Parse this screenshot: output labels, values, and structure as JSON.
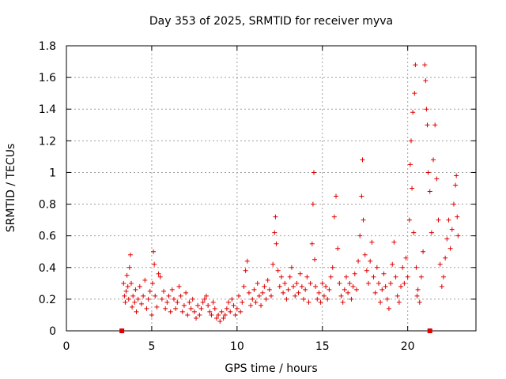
{
  "chart_data": {
    "type": "scatter",
    "title": "Day 353 of 2025, SRMTID for receiver myva",
    "xlabel": "GPS time / hours",
    "ylabel": "SRMTID / TECUs",
    "xlim": [
      0,
      24
    ],
    "ylim": [
      0,
      1.8
    ],
    "xticks": [
      "0",
      "5",
      "10",
      "15",
      "20"
    ],
    "yticks": [
      "0",
      "0.2",
      "0.4",
      "0.6",
      "0.8",
      "1",
      "1.2",
      "1.4",
      "1.6",
      "1.8"
    ],
    "grid": true,
    "marker_color": "#e00000",
    "series": [
      {
        "name": "SRMTID",
        "marker": "plus",
        "points": [
          [
            3.35,
            0.3
          ],
          [
            3.4,
            0.22
          ],
          [
            3.45,
            0.18
          ],
          [
            3.5,
            0.25
          ],
          [
            3.55,
            0.35
          ],
          [
            3.6,
            0.28
          ],
          [
            3.65,
            0.2
          ],
          [
            3.7,
            0.4
          ],
          [
            3.75,
            0.48
          ],
          [
            3.8,
            0.3
          ],
          [
            3.85,
            0.15
          ],
          [
            3.9,
            0.22
          ],
          [
            4.0,
            0.18
          ],
          [
            4.05,
            0.26
          ],
          [
            4.1,
            0.12
          ],
          [
            4.2,
            0.2
          ],
          [
            4.3,
            0.28
          ],
          [
            4.4,
            0.17
          ],
          [
            4.5,
            0.22
          ],
          [
            4.6,
            0.32
          ],
          [
            4.7,
            0.14
          ],
          [
            4.8,
            0.2
          ],
          [
            4.9,
            0.25
          ],
          [
            5.0,
            0.1
          ],
          [
            5.05,
            0.3
          ],
          [
            5.1,
            0.5
          ],
          [
            5.15,
            0.42
          ],
          [
            5.2,
            0.22
          ],
          [
            5.3,
            0.15
          ],
          [
            5.4,
            0.36
          ],
          [
            5.5,
            0.34
          ],
          [
            5.6,
            0.2
          ],
          [
            5.7,
            0.25
          ],
          [
            5.8,
            0.14
          ],
          [
            5.9,
            0.18
          ],
          [
            6.0,
            0.22
          ],
          [
            6.1,
            0.12
          ],
          [
            6.2,
            0.26
          ],
          [
            6.3,
            0.2
          ],
          [
            6.4,
            0.14
          ],
          [
            6.5,
            0.18
          ],
          [
            6.6,
            0.28
          ],
          [
            6.7,
            0.22
          ],
          [
            6.8,
            0.12
          ],
          [
            6.9,
            0.16
          ],
          [
            7.0,
            0.24
          ],
          [
            7.1,
            0.1
          ],
          [
            7.2,
            0.18
          ],
          [
            7.3,
            0.14
          ],
          [
            7.4,
            0.2
          ],
          [
            7.5,
            0.12
          ],
          [
            7.6,
            0.08
          ],
          [
            7.7,
            0.16
          ],
          [
            7.8,
            0.1
          ],
          [
            7.9,
            0.14
          ],
          [
            8.0,
            0.18
          ],
          [
            8.1,
            0.2
          ],
          [
            8.2,
            0.22
          ],
          [
            8.3,
            0.16
          ],
          [
            8.4,
            0.12
          ],
          [
            8.5,
            0.1
          ],
          [
            8.6,
            0.18
          ],
          [
            8.7,
            0.14
          ],
          [
            8.8,
            0.08
          ],
          [
            8.9,
            0.1
          ],
          [
            9.0,
            0.06
          ],
          [
            9.1,
            0.12
          ],
          [
            9.2,
            0.08
          ],
          [
            9.3,
            0.1
          ],
          [
            9.4,
            0.14
          ],
          [
            9.5,
            0.18
          ],
          [
            9.6,
            0.12
          ],
          [
            9.7,
            0.2
          ],
          [
            9.8,
            0.16
          ],
          [
            9.9,
            0.1
          ],
          [
            10.0,
            0.14
          ],
          [
            10.1,
            0.22
          ],
          [
            10.2,
            0.12
          ],
          [
            10.3,
            0.18
          ],
          [
            10.4,
            0.28
          ],
          [
            10.5,
            0.38
          ],
          [
            10.6,
            0.44
          ],
          [
            10.7,
            0.24
          ],
          [
            10.8,
            0.16
          ],
          [
            10.9,
            0.2
          ],
          [
            11.0,
            0.26
          ],
          [
            11.1,
            0.18
          ],
          [
            11.2,
            0.3
          ],
          [
            11.3,
            0.22
          ],
          [
            11.4,
            0.16
          ],
          [
            11.5,
            0.24
          ],
          [
            11.6,
            0.28
          ],
          [
            11.7,
            0.2
          ],
          [
            11.8,
            0.32
          ],
          [
            11.9,
            0.26
          ],
          [
            12.0,
            0.22
          ],
          [
            12.1,
            0.42
          ],
          [
            12.2,
            0.62
          ],
          [
            12.25,
            0.72
          ],
          [
            12.3,
            0.55
          ],
          [
            12.4,
            0.38
          ],
          [
            12.5,
            0.28
          ],
          [
            12.6,
            0.34
          ],
          [
            12.7,
            0.24
          ],
          [
            12.8,
            0.3
          ],
          [
            12.9,
            0.2
          ],
          [
            13.0,
            0.26
          ],
          [
            13.1,
            0.34
          ],
          [
            13.2,
            0.4
          ],
          [
            13.3,
            0.28
          ],
          [
            13.4,
            0.22
          ],
          [
            13.5,
            0.3
          ],
          [
            13.6,
            0.24
          ],
          [
            13.7,
            0.36
          ],
          [
            13.8,
            0.28
          ],
          [
            13.9,
            0.2
          ],
          [
            14.0,
            0.26
          ],
          [
            14.1,
            0.34
          ],
          [
            14.2,
            0.18
          ],
          [
            14.3,
            0.3
          ],
          [
            14.4,
            0.55
          ],
          [
            14.45,
            0.8
          ],
          [
            14.5,
            1.0
          ],
          [
            14.55,
            0.45
          ],
          [
            14.6,
            0.28
          ],
          [
            14.7,
            0.2
          ],
          [
            14.8,
            0.24
          ],
          [
            14.9,
            0.18
          ],
          [
            15.0,
            0.3
          ],
          [
            15.1,
            0.22
          ],
          [
            15.2,
            0.28
          ],
          [
            15.3,
            0.2
          ],
          [
            15.4,
            0.26
          ],
          [
            15.5,
            0.34
          ],
          [
            15.6,
            0.4
          ],
          [
            15.7,
            0.72
          ],
          [
            15.8,
            0.85
          ],
          [
            15.9,
            0.52
          ],
          [
            16.0,
            0.3
          ],
          [
            16.1,
            0.22
          ],
          [
            16.2,
            0.18
          ],
          [
            16.3,
            0.26
          ],
          [
            16.4,
            0.34
          ],
          [
            16.5,
            0.24
          ],
          [
            16.6,
            0.3
          ],
          [
            16.7,
            0.2
          ],
          [
            16.8,
            0.28
          ],
          [
            16.9,
            0.36
          ],
          [
            17.0,
            0.26
          ],
          [
            17.1,
            0.44
          ],
          [
            17.2,
            0.6
          ],
          [
            17.3,
            0.85
          ],
          [
            17.35,
            1.08
          ],
          [
            17.4,
            0.7
          ],
          [
            17.5,
            0.48
          ],
          [
            17.6,
            0.38
          ],
          [
            17.7,
            0.3
          ],
          [
            17.8,
            0.44
          ],
          [
            17.9,
            0.56
          ],
          [
            18.0,
            0.34
          ],
          [
            18.1,
            0.24
          ],
          [
            18.2,
            0.4
          ],
          [
            18.3,
            0.3
          ],
          [
            18.4,
            0.18
          ],
          [
            18.5,
            0.26
          ],
          [
            18.6,
            0.36
          ],
          [
            18.7,
            0.28
          ],
          [
            18.8,
            0.2
          ],
          [
            18.9,
            0.14
          ],
          [
            19.0,
            0.3
          ],
          [
            19.1,
            0.42
          ],
          [
            19.2,
            0.56
          ],
          [
            19.3,
            0.34
          ],
          [
            19.4,
            0.22
          ],
          [
            19.5,
            0.18
          ],
          [
            19.6,
            0.28
          ],
          [
            19.7,
            0.4
          ],
          [
            19.8,
            0.3
          ],
          [
            19.9,
            0.46
          ],
          [
            20.0,
            0.34
          ],
          [
            20.1,
            0.7
          ],
          [
            20.15,
            1.05
          ],
          [
            20.2,
            1.2
          ],
          [
            20.25,
            0.9
          ],
          [
            20.3,
            1.38
          ],
          [
            20.35,
            0.62
          ],
          [
            20.4,
            1.5
          ],
          [
            20.45,
            1.68
          ],
          [
            20.5,
            0.4
          ],
          [
            20.55,
            0.22
          ],
          [
            20.6,
            0.26
          ],
          [
            20.7,
            0.18
          ],
          [
            20.8,
            0.34
          ],
          [
            20.9,
            0.5
          ],
          [
            21.0,
            1.68
          ],
          [
            21.05,
            1.58
          ],
          [
            21.1,
            1.4
          ],
          [
            21.15,
            1.3
          ],
          [
            21.2,
            1.0
          ],
          [
            21.3,
            0.88
          ],
          [
            21.4,
            0.62
          ],
          [
            21.5,
            1.08
          ],
          [
            21.6,
            1.3
          ],
          [
            21.7,
            0.96
          ],
          [
            21.8,
            0.7
          ],
          [
            21.9,
            0.42
          ],
          [
            22.0,
            0.28
          ],
          [
            22.1,
            0.34
          ],
          [
            22.2,
            0.46
          ],
          [
            22.3,
            0.58
          ],
          [
            22.4,
            0.7
          ],
          [
            22.5,
            0.52
          ],
          [
            22.6,
            0.64
          ],
          [
            22.7,
            0.8
          ],
          [
            22.8,
            0.92
          ],
          [
            22.85,
            0.98
          ],
          [
            22.9,
            0.72
          ],
          [
            22.95,
            0.6
          ]
        ]
      }
    ],
    "no_data_markers_x": [
      3.25,
      21.3
    ]
  }
}
